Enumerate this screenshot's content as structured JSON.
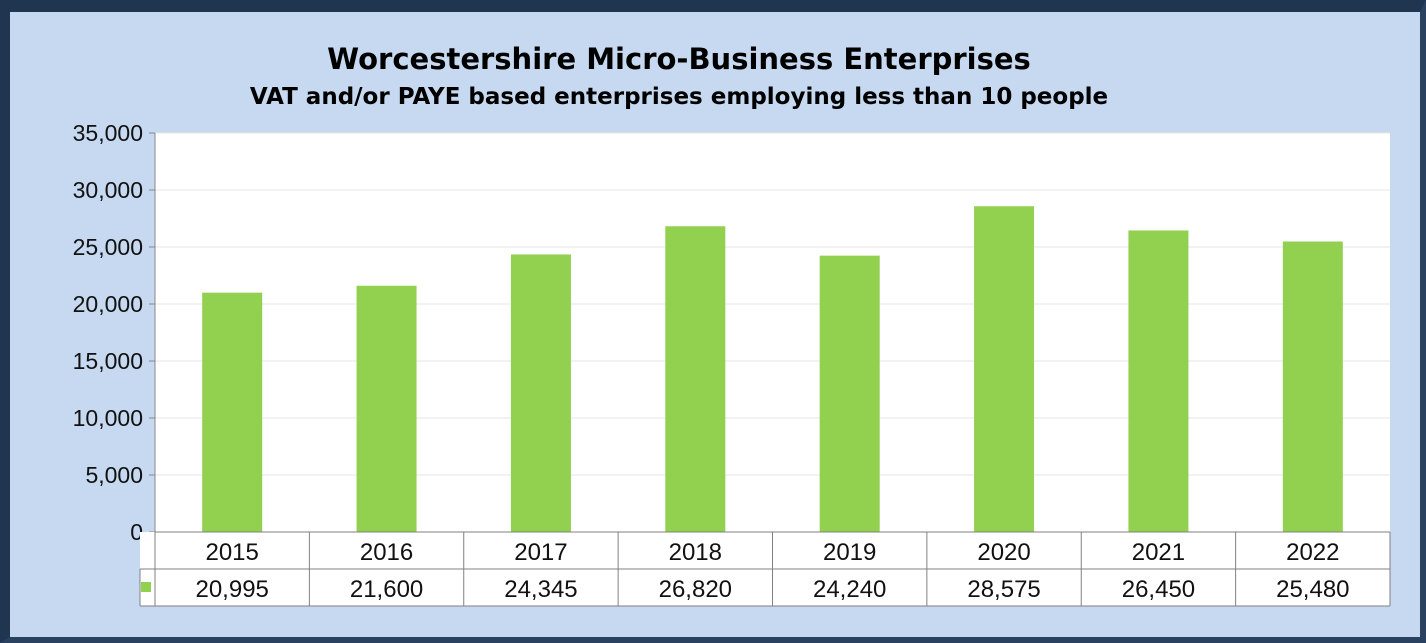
{
  "chart_data": {
    "type": "bar",
    "title": "Worcestershire Micro-Business Enterprises",
    "subtitle": "VAT and/or PAYE based enterprises employing less than 10 people",
    "categories": [
      "2015",
      "2016",
      "2017",
      "2018",
      "2019",
      "2020",
      "2021",
      "2022"
    ],
    "values": [
      20995,
      21600,
      24345,
      26820,
      24240,
      28575,
      26450,
      25480
    ],
    "value_labels": [
      "20,995",
      "21,600",
      "24,345",
      "26,820",
      "24,240",
      "28,575",
      "26,450",
      "25,480"
    ],
    "yticks": [
      "0",
      "5,000",
      "10,000",
      "15,000",
      "20,000",
      "25,000",
      "30,000",
      "35,000"
    ],
    "ylim": [
      0,
      35000
    ],
    "xlabel": "",
    "ylabel": "",
    "grid": true,
    "legend": "data-table",
    "colors": {
      "bar": "#92d050",
      "plot_bg": "#ffffff",
      "frame_bg": "#c6d9f0",
      "border": "#1f3550"
    }
  }
}
